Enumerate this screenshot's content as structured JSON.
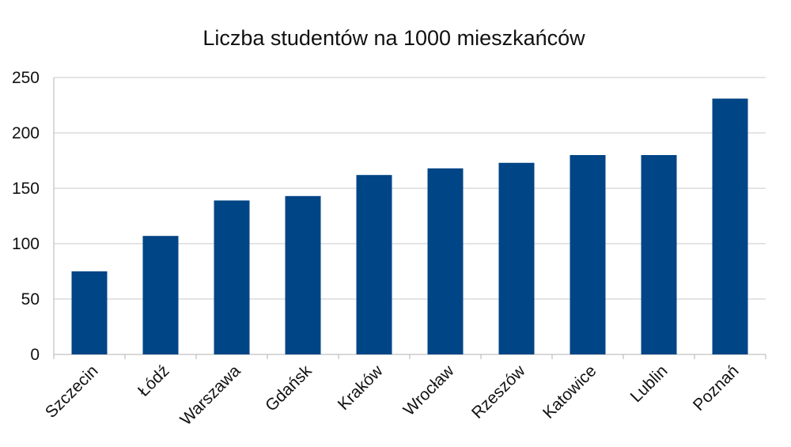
{
  "chart_data": {
    "type": "bar",
    "title": "Liczba studentów na 1000 mieszkańców",
    "xlabel": "",
    "ylabel": "",
    "categories": [
      "Szczecin",
      "Łódź",
      "Warszawa",
      "Gdańsk",
      "Kraków",
      "Wrocław",
      "Rzeszów",
      "Katowice",
      "Lublin",
      "Poznań"
    ],
    "values": [
      75,
      107,
      139,
      143,
      162,
      168,
      173,
      180,
      180,
      231
    ],
    "ylim": [
      0,
      250
    ],
    "yticks": [
      "0",
      "50",
      "100",
      "150",
      "200",
      "250"
    ],
    "grid": true,
    "legend": "none",
    "bar_color": "#004586"
  }
}
